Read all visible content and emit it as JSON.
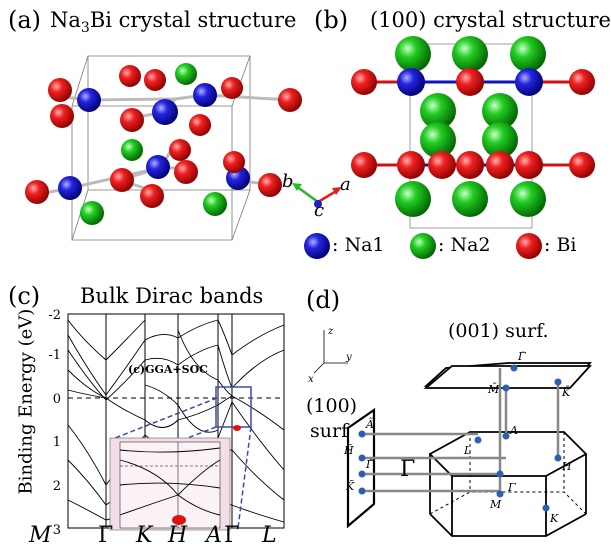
{
  "panel_a": {
    "letter": "(a)",
    "title_pre": "Na",
    "title_sub": "3",
    "title_post": "Bi crystal structure"
  },
  "panel_b": {
    "letter": "(b)",
    "title": "(100) crystal structure"
  },
  "axes_triad": {
    "a": "a",
    "b": "b",
    "c": "c"
  },
  "legend": [
    {
      "symbol": "blue-sphere-icon",
      "color": "#1a1aee",
      "label": ": Na1"
    },
    {
      "symbol": "green-sphere-icon",
      "color": "#22cc22",
      "label": ": Na2"
    },
    {
      "symbol": "red-sphere-icon",
      "color": "#e01818",
      "label": ": Bi"
    }
  ],
  "panel_c": {
    "letter": "(c)",
    "title": "Bulk Dirac bands",
    "ylabel": "Binding Energy (eV)",
    "yticks": [
      "-2",
      "-1",
      "0",
      "1",
      "2",
      "3"
    ],
    "xticks": [
      "M",
      "Γ",
      "K",
      "H",
      "A",
      "Γ",
      "L"
    ],
    "annotation": "(c)GGA+SOC"
  },
  "panel_d": {
    "letter": "(d)",
    "surface_001": "(001) surf.",
    "surface_100_line1": "(100)",
    "surface_100_line2": "surf.",
    "big_gamma": "Γ",
    "axes": {
      "z": "z",
      "y": "y",
      "x": "x"
    },
    "points": {
      "gamma_bar_top": "Γ̄",
      "m_bar_top": "M̄",
      "k_bar_top": "K̄",
      "a_bar_left": "Ã",
      "h_bar_left": "H̃",
      "gamma_bar_left": "Γ̃",
      "k_bar_left": "K̃",
      "A": "A",
      "L": "L",
      "H": "H",
      "Gamma": "Γ",
      "M": "M",
      "K": "K"
    }
  }
}
